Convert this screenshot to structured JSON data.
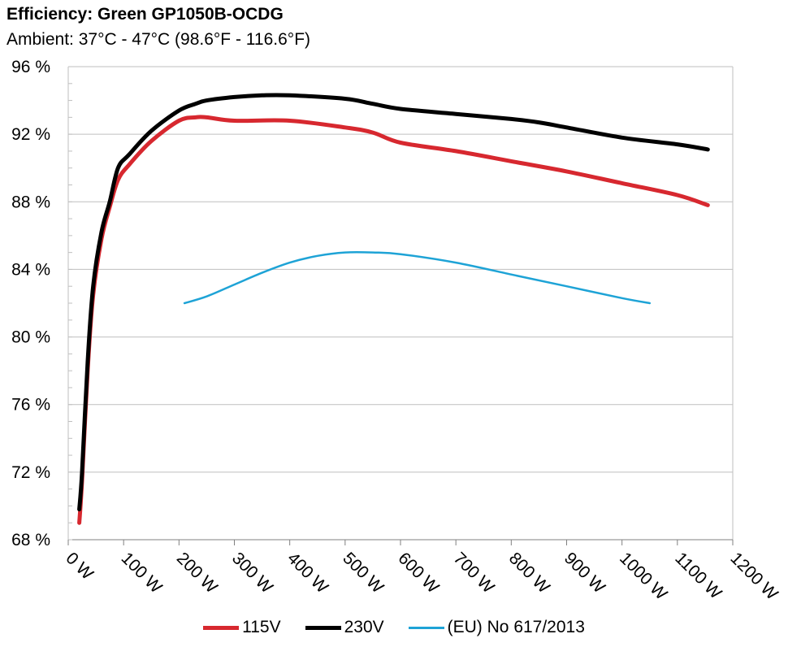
{
  "chart_data": {
    "type": "line",
    "title": "Efficiency: Green GP1050B-OCDG",
    "subtitle": "Ambient: 37°C - 47°C (98.6°F - 116.6°F)",
    "x_range": [
      0,
      1200
    ],
    "y_range": [
      68,
      96
    ],
    "x_ticks": [
      0,
      100,
      200,
      300,
      400,
      500,
      600,
      700,
      800,
      900,
      1000,
      1100,
      1200
    ],
    "x_tick_labels": [
      "0 W",
      "100 W",
      "200 W",
      "300 W",
      "400 W",
      "500 W",
      "600 W",
      "700 W",
      "800 W",
      "900 W",
      "1000 W",
      "1100 W",
      "1200 W"
    ],
    "y_ticks": [
      68,
      72,
      76,
      80,
      84,
      88,
      92,
      96
    ],
    "y_tick_labels": [
      "68 %",
      "72 %",
      "76 %",
      "80 %",
      "84 %",
      "88 %",
      "92 %",
      "96 %"
    ],
    "grid": true,
    "legend_position": "bottom",
    "series": [
      {
        "name": "115V",
        "color": "#d7282f",
        "x": [
          20,
          25,
          35,
          45,
          60,
          75,
          90,
          110,
          150,
          200,
          230,
          250,
          300,
          400,
          500,
          550,
          600,
          700,
          800,
          900,
          1000,
          1100,
          1155
        ],
        "y": [
          69.0,
          71.5,
          78.0,
          82.5,
          85.8,
          87.7,
          89.3,
          90.2,
          91.6,
          92.8,
          93.0,
          93.0,
          92.8,
          92.8,
          92.4,
          92.1,
          91.5,
          91.0,
          90.4,
          89.8,
          89.1,
          88.4,
          87.8
        ]
      },
      {
        "name": "230V",
        "color": "#000000",
        "x": [
          20,
          25,
          35,
          45,
          60,
          75,
          90,
          110,
          150,
          200,
          230,
          250,
          300,
          350,
          400,
          500,
          550,
          600,
          700,
          800,
          850,
          900,
          1000,
          1100,
          1155
        ],
        "y": [
          69.8,
          72.0,
          78.5,
          83.0,
          86.2,
          88.0,
          90.0,
          90.8,
          92.2,
          93.4,
          93.8,
          94.0,
          94.2,
          94.3,
          94.3,
          94.1,
          93.8,
          93.5,
          93.2,
          92.9,
          92.7,
          92.4,
          91.8,
          91.4,
          91.1
        ]
      },
      {
        "name": "(EU) No 617/2013",
        "color": "#1ea3d6",
        "x": [
          210,
          250,
          300,
          350,
          400,
          450,
          500,
          550,
          600,
          700,
          800,
          900,
          1000,
          1050
        ],
        "y": [
          82.0,
          82.4,
          83.1,
          83.8,
          84.4,
          84.8,
          85.0,
          85.0,
          84.9,
          84.4,
          83.7,
          83.0,
          82.3,
          82.0
        ]
      }
    ]
  }
}
